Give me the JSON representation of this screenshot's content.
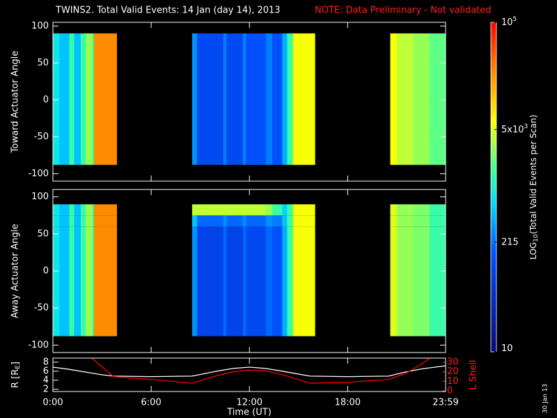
{
  "title": "TWINS2. Total Valid Events: 14 Jan (day  14), 2013",
  "note": "NOTE: Data Preliminary - Not validated",
  "date": "30 Jan 13",
  "colorbar": {
    "label_main": "LOG",
    "label_sub": "10",
    "label_rest": "(Total Valid Events per Scan)",
    "log": true,
    "lim": [
      10,
      100000
    ],
    "ticks": [
      {
        "value": 10,
        "label": "10"
      },
      215,
      {
        "value": 5000,
        "label": "5x10",
        "exp": "3"
      },
      {
        "value": 100000,
        "label": "10",
        "exp": "5"
      }
    ]
  },
  "chart_data": [
    {
      "type": "heatmap",
      "ylabel": "Toward Actuator Angle",
      "xlim": [
        0,
        23.98
      ],
      "ylim": [
        -110,
        105
      ],
      "yticks": [
        -100,
        -50,
        0,
        50,
        100
      ],
      "x_bins": [
        0,
        0.4,
        1.0,
        1.3,
        1.7,
        2.0,
        2.4,
        2.5,
        3.9,
        8.5,
        8.8,
        10.4,
        10.6,
        11.6,
        11.8,
        13.0,
        13.4,
        14.0,
        14.3,
        14.65,
        16.0,
        20.6,
        21.0,
        22.0,
        23.0,
        23.98
      ],
      "y_bins": [
        -88,
        90
      ],
      "values": [
        [
          800
        ],
        [
          500
        ],
        [
          1500
        ],
        [
          500
        ],
        [
          1500
        ],
        [
          3000
        ],
        [
          1500
        ],
        [
          25000
        ],
        null,
        [
          300
        ],
        [
          120
        ],
        [
          250
        ],
        [
          120
        ],
        [
          250
        ],
        [
          150
        ],
        [
          250
        ],
        [
          150
        ],
        [
          400
        ],
        [
          1500
        ],
        [
          6000
        ],
        null,
        [
          6000
        ],
        [
          4000
        ],
        [
          3000
        ],
        [
          2000
        ]
      ]
    },
    {
      "type": "heatmap",
      "ylabel": "Away Actuator Angle",
      "xlim": [
        0,
        23.98
      ],
      "ylim": [
        -110,
        110
      ],
      "yticks": [
        -100,
        -50,
        0,
        50,
        100
      ],
      "x_bins": [
        0,
        0.4,
        1.0,
        1.3,
        1.7,
        2.0,
        2.4,
        2.5,
        3.9,
        8.5,
        8.8,
        10.4,
        10.6,
        11.6,
        11.8,
        13.0,
        13.4,
        14.0,
        14.3,
        14.65,
        16.0,
        20.6,
        21.0,
        22.0,
        23.0,
        23.98
      ],
      "y_bins": [
        -88,
        60,
        75,
        90
      ],
      "values": [
        [
          800,
          800,
          800
        ],
        [
          500,
          500,
          500
        ],
        [
          1500,
          1500,
          1500
        ],
        [
          500,
          500,
          500
        ],
        [
          1500,
          1500,
          1500
        ],
        [
          3000,
          3000,
          3000
        ],
        [
          1500,
          1500,
          1500
        ],
        [
          25000,
          25000,
          25000
        ],
        null,
        [
          300,
          500,
          4000
        ],
        [
          100,
          200,
          4000
        ],
        [
          200,
          300,
          4000
        ],
        [
          100,
          200,
          4000
        ],
        [
          200,
          300,
          4000
        ],
        [
          120,
          200,
          4000
        ],
        [
          200,
          300,
          3000
        ],
        [
          150,
          250,
          1500
        ],
        [
          400,
          500,
          600
        ],
        [
          1500,
          1500,
          1500
        ],
        [
          6000,
          6000,
          6000
        ],
        null,
        [
          5000,
          5000,
          5000
        ],
        [
          3000,
          3000,
          3000
        ],
        [
          2500,
          2500,
          2500
        ],
        [
          1500,
          1500,
          1500
        ]
      ]
    },
    {
      "type": "line",
      "ylabel": "R [R",
      "ylabel_sub": "E",
      "ylabel_end": "]",
      "y2label": "L Shell",
      "xlabel": "Time (UT)",
      "xlim": [
        0,
        23.98
      ],
      "ylim": [
        1.5,
        8.9
      ],
      "yticks": [
        2,
        4,
        6,
        8
      ],
      "y2lim": [
        -0.7,
        34.4
      ],
      "y2ticks": [
        0,
        10,
        20,
        30
      ],
      "xticks": [
        {
          "value": 0,
          "label": "0:00"
        },
        {
          "value": 6,
          "label": "6:00"
        },
        {
          "value": 12,
          "label": "12:00"
        },
        {
          "value": 18,
          "label": "18:00"
        },
        {
          "value": 23.98,
          "label": "23:59"
        }
      ],
      "series": [
        {
          "color": "#ffffff",
          "x": [
            0,
            1,
            2,
            3,
            3.7,
            6,
            8.5,
            10,
            11,
            12,
            13,
            14,
            15.7,
            18,
            20.5,
            21.5,
            22.5,
            23.98
          ],
          "values": [
            6.9,
            6.4,
            5.8,
            5.2,
            4.9,
            4.8,
            4.9,
            6.0,
            6.6,
            6.9,
            6.6,
            6.0,
            4.9,
            4.8,
            4.9,
            5.8,
            6.5,
            7.2
          ]
        },
        {
          "color": "#ff0000",
          "axis": "y2",
          "x": [
            2.4,
            3.7,
            6,
            8.5,
            10,
            11,
            12,
            13,
            14,
            15.7,
            18,
            20.5,
            21.5,
            22.5,
            23.0
          ],
          "values": [
            34,
            15,
            12,
            8,
            16,
            20,
            22,
            21,
            17,
            8,
            9,
            12,
            18,
            28,
            34
          ]
        }
      ]
    }
  ]
}
